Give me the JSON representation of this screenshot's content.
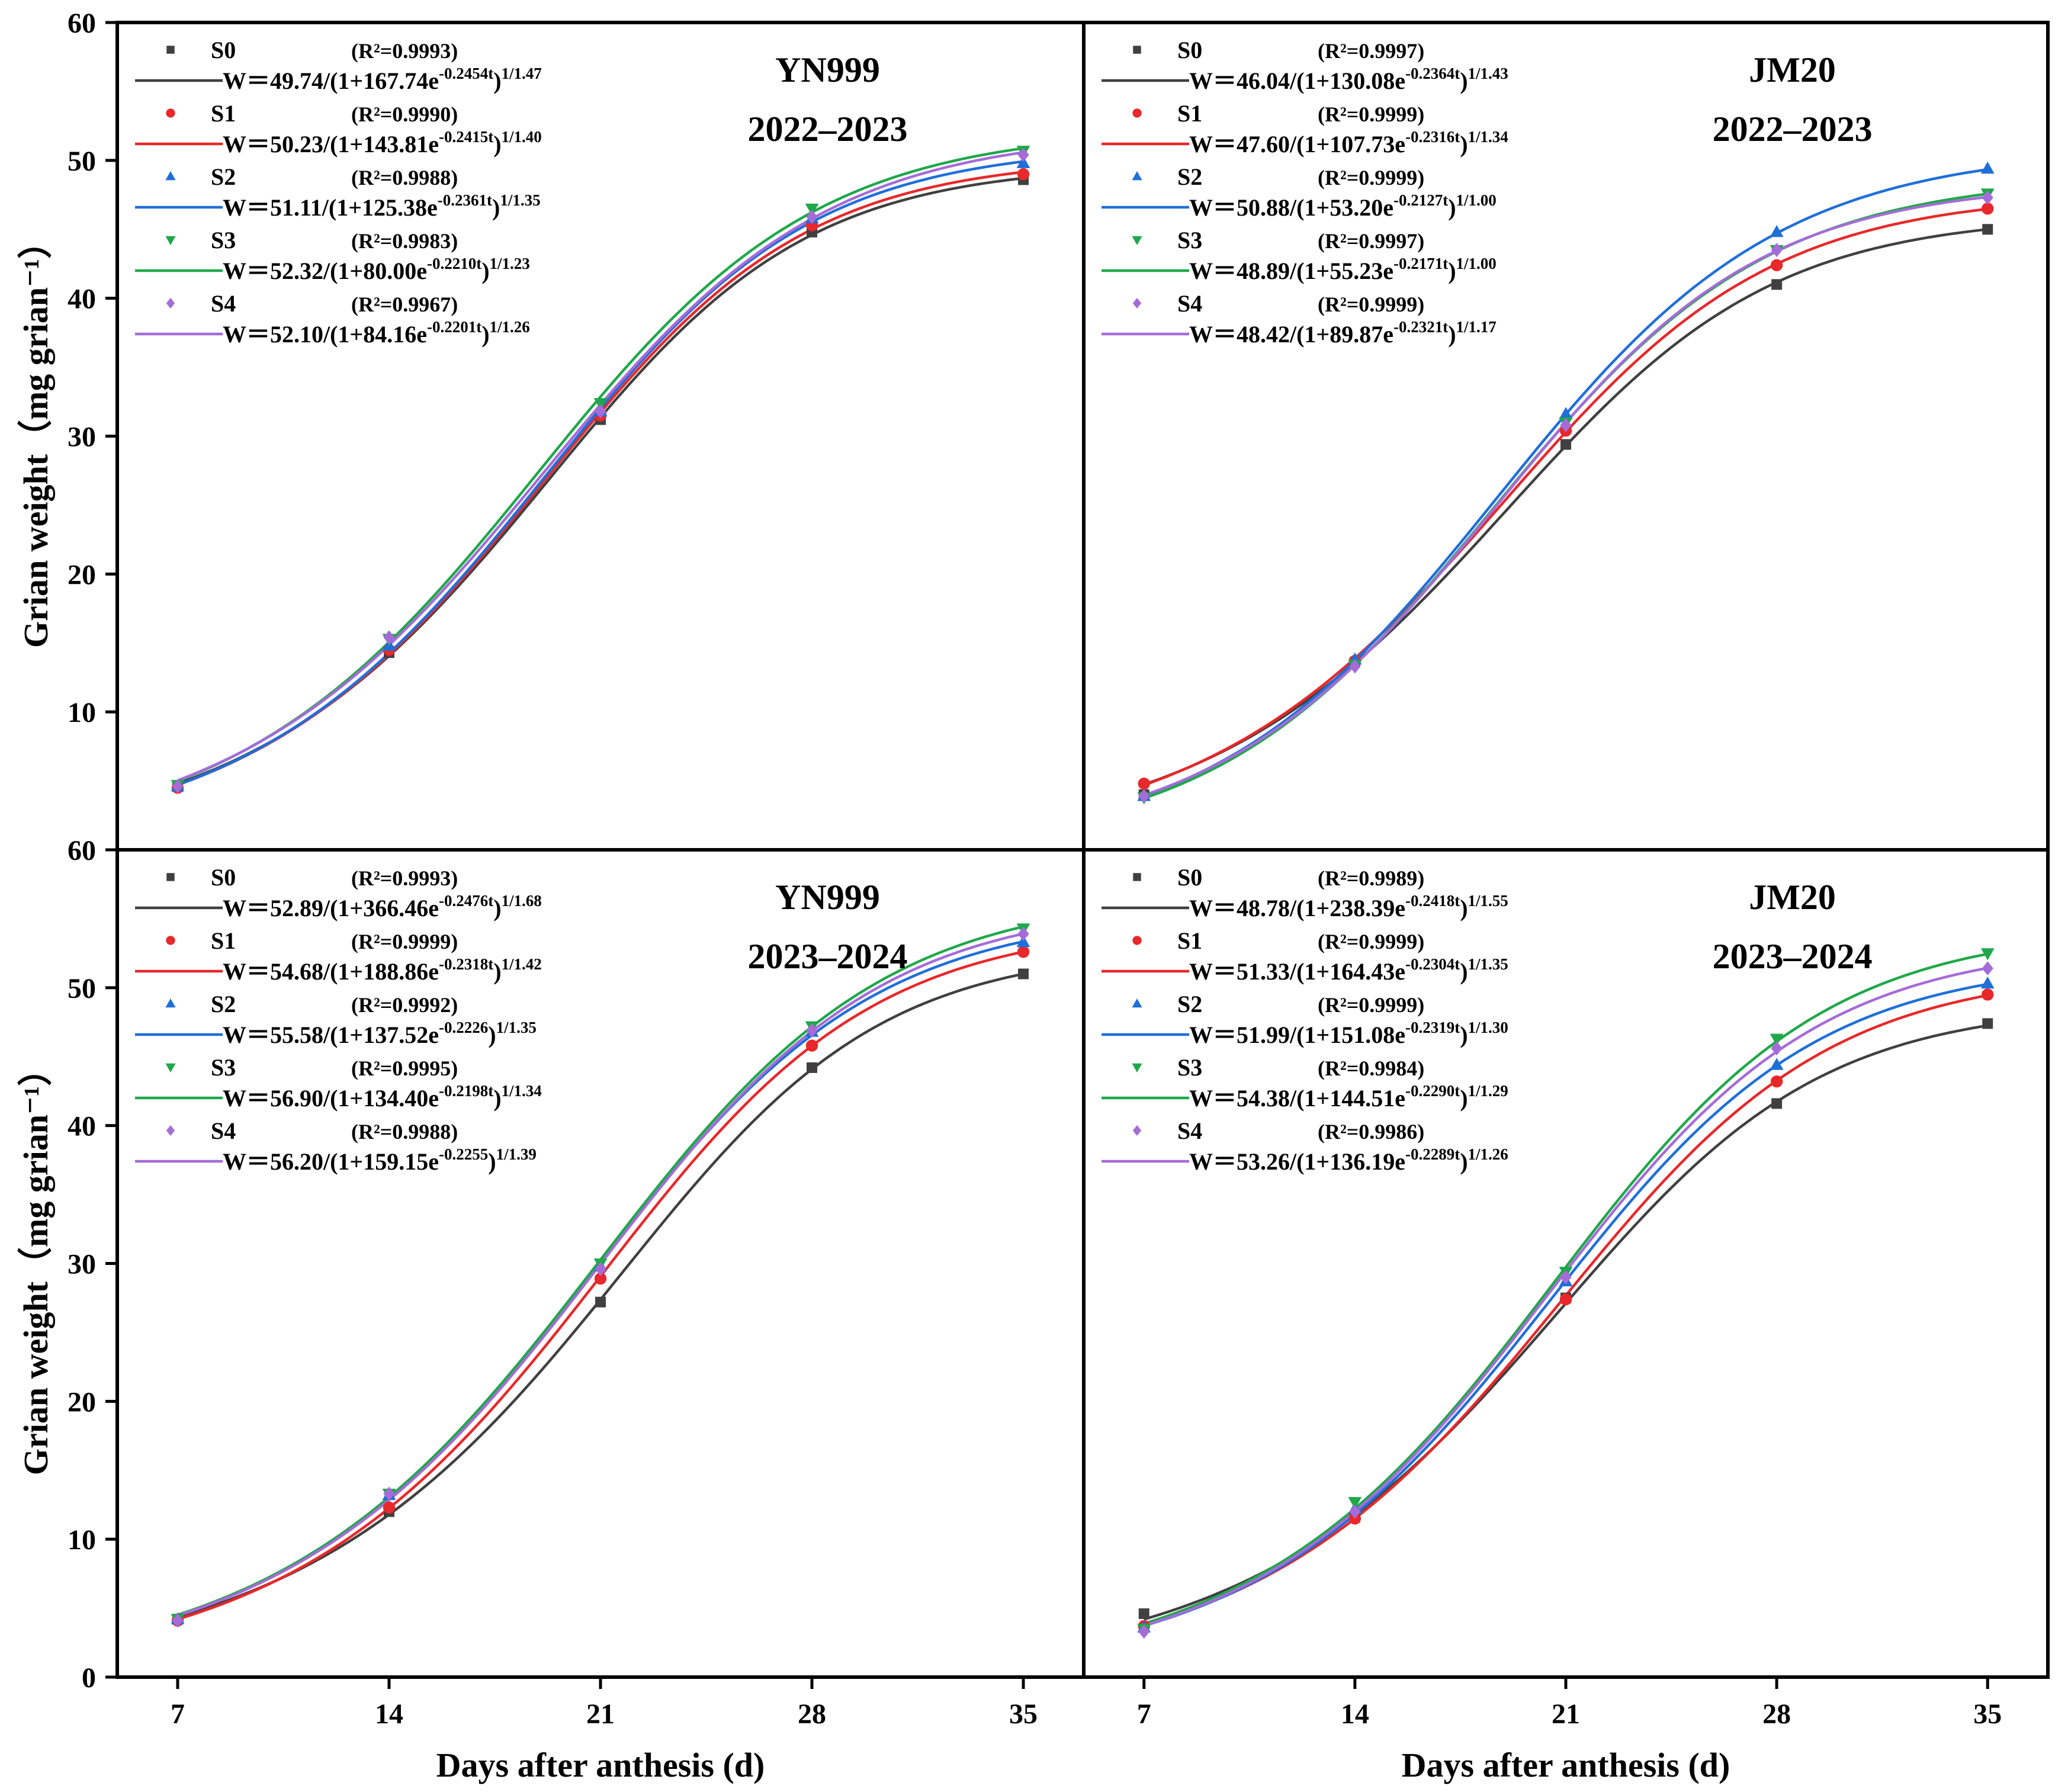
{
  "chart_data": {
    "type": "scatter",
    "layout": "2x2 shared axes",
    "xlabel": "Days after anthesis (d)",
    "ylabel": "Grian weight（mg grian⁻¹）",
    "xticks": [
      7,
      14,
      21,
      28,
      35
    ],
    "xlim": [
      5,
      37
    ],
    "yticks": [
      10,
      20,
      30,
      40,
      50,
      60
    ],
    "zero_label": "0",
    "ylim": [
      0,
      60
    ],
    "series_styles": [
      {
        "name": "S0",
        "color": "#404040",
        "marker": "square"
      },
      {
        "name": "S1",
        "color": "#e8282a",
        "marker": "circle"
      },
      {
        "name": "S2",
        "color": "#1f6fd9",
        "marker": "triangle-up"
      },
      {
        "name": "S3",
        "color": "#1fa84a",
        "marker": "triangle-down"
      },
      {
        "name": "S4",
        "color": "#a56cd8",
        "marker": "diamond"
      }
    ],
    "panels": [
      {
        "cultivar": "YN999",
        "season": "2022–2023",
        "x": [
          7,
          14,
          21,
          28,
          35
        ],
        "series": [
          {
            "name": "S0",
            "r2": "(R²=0.9993)",
            "eq_main": "W＝49.74/(1+167.74e",
            "eq_exp": "-0.2454t",
            "eq_close": ")",
            "eq_pow": "1/1.47",
            "A": 49.74,
            "B": 167.74,
            "k": 0.2454,
            "N": 1.47,
            "values": [
              4.6,
              14.3,
              31.2,
              44.8,
              48.6
            ]
          },
          {
            "name": "S1",
            "r2": "(R²=0.9990)",
            "eq_main": "W＝50.23/(1+143.81e",
            "eq_exp": "-0.2415t",
            "eq_close": ")",
            "eq_pow": "1/1.40",
            "A": 50.23,
            "B": 143.81,
            "k": 0.2415,
            "N": 1.4,
            "values": [
              4.5,
              14.5,
              31.5,
              45.3,
              49.0
            ]
          },
          {
            "name": "S2",
            "r2": "(R²=0.9988)",
            "eq_main": "W＝51.11/(1+125.38e",
            "eq_exp": "-0.2361t",
            "eq_close": ")",
            "eq_pow": "1/1.35",
            "A": 51.11,
            "B": 125.38,
            "k": 0.2361,
            "N": 1.35,
            "values": [
              4.6,
              14.8,
              31.8,
              45.8,
              49.8
            ]
          },
          {
            "name": "S3",
            "r2": "(R²=0.9983)",
            "eq_main": "W＝52.32/(1+80.00e",
            "eq_exp": "-0.2210t",
            "eq_close": ")",
            "eq_pow": "1/1.23",
            "A": 52.32,
            "B": 80.0,
            "k": 0.221,
            "N": 1.23,
            "values": [
              4.7,
              15.3,
              32.4,
              46.5,
              50.7
            ]
          },
          {
            "name": "S4",
            "r2": "(R²=0.9967)",
            "eq_main": "W＝52.10/(1+84.16e",
            "eq_exp": "-0.2201t",
            "eq_close": ")",
            "eq_pow": "1/1.26",
            "A": 52.1,
            "B": 84.16,
            "k": 0.2201,
            "N": 1.26,
            "values": [
              4.6,
              15.4,
              31.8,
              45.9,
              50.4
            ]
          }
        ]
      },
      {
        "cultivar": "JM20",
        "season": "2022–2023",
        "x": [
          7,
          14,
          21,
          28,
          35
        ],
        "series": [
          {
            "name": "S0",
            "r2": "(R²=0.9997)",
            "eq_main": "W＝46.04/(1+130.08e",
            "eq_exp": "-0.2364t",
            "eq_close": ")",
            "eq_pow": "1/1.43",
            "A": 46.04,
            "B": 130.08,
            "k": 0.2364,
            "N": 1.43,
            "values": [
              4.0,
              13.6,
              29.4,
              41.0,
              45.0
            ]
          },
          {
            "name": "S1",
            "r2": "(R²=0.9999)",
            "eq_main": "W＝47.60/(1+107.73e",
            "eq_exp": "-0.2316t",
            "eq_close": ")",
            "eq_pow": "1/1.34",
            "A": 47.6,
            "B": 107.73,
            "k": 0.2316,
            "N": 1.34,
            "values": [
              4.8,
              13.7,
              30.4,
              42.4,
              46.5
            ]
          },
          {
            "name": "S2",
            "r2": "(R²=0.9999)",
            "eq_main": "W＝50.88/(1+53.20e",
            "eq_exp": "-0.2127t",
            "eq_close": ")",
            "eq_pow": "1/1.00",
            "A": 50.88,
            "B": 53.2,
            "k": 0.2127,
            "N": 1.0,
            "values": [
              3.9,
              13.8,
              31.6,
              44.8,
              49.4
            ]
          },
          {
            "name": "S3",
            "r2": "(R²=0.9997)",
            "eq_main": "W＝48.89/(1+55.23e",
            "eq_exp": "-0.2171t",
            "eq_close": ")",
            "eq_pow": "1/1.00",
            "A": 48.89,
            "B": 55.23,
            "k": 0.2171,
            "N": 1.0,
            "values": [
              3.8,
              13.4,
              31.0,
              43.5,
              47.6
            ]
          },
          {
            "name": "S4",
            "r2": "(R²=0.9999)",
            "eq_main": "W＝48.42/(1+89.87e",
            "eq_exp": "-0.2321t",
            "eq_close": ")",
            "eq_pow": "1/1.17",
            "A": 48.42,
            "B": 89.87,
            "k": 0.2321,
            "N": 1.17,
            "values": [
              3.9,
              13.3,
              30.8,
              43.5,
              47.3
            ]
          }
        ]
      },
      {
        "cultivar": "YN999",
        "season": "2023–2024",
        "x": [
          7,
          14,
          21,
          28,
          35
        ],
        "series": [
          {
            "name": "S0",
            "r2": "(R²=0.9993)",
            "eq_main": "W＝52.89/(1+366.46e",
            "eq_exp": "-0.2476t",
            "eq_close": ")",
            "eq_pow": "1/1.68",
            "A": 52.89,
            "B": 366.46,
            "k": 0.2476,
            "N": 1.68,
            "values": [
              4.2,
              12.0,
              27.2,
              44.2,
              51.0
            ]
          },
          {
            "name": "S1",
            "r2": "(R²=0.9999)",
            "eq_main": "W＝54.68/(1+188.86e",
            "eq_exp": "-0.2318t",
            "eq_close": ")",
            "eq_pow": "1/1.42",
            "A": 54.68,
            "B": 188.86,
            "k": 0.2318,
            "N": 1.42,
            "values": [
              4.1,
              12.3,
              28.9,
              45.8,
              52.6
            ]
          },
          {
            "name": "S2",
            "r2": "(R²=0.9992)",
            "eq_main": "W＝55.58/(1+137.52e",
            "eq_exp": "-0.2226",
            "eq_close": ")",
            "eq_pow": "1/1.35",
            "A": 55.58,
            "B": 137.52,
            "k": 0.2226,
            "N": 1.35,
            "values": [
              4.2,
              13.2,
              29.8,
              46.8,
              53.3
            ]
          },
          {
            "name": "S3",
            "r2": "(R²=0.9995)",
            "eq_main": "W＝56.90/(1+134.40e",
            "eq_exp": "-0.2198t",
            "eq_close": ")",
            "eq_pow": "1/1.34",
            "A": 56.9,
            "B": 134.4,
            "k": 0.2198,
            "N": 1.34,
            "values": [
              4.2,
              13.3,
              30.0,
              47.2,
              54.3
            ]
          },
          {
            "name": "S4",
            "r2": "(R²=0.9988)",
            "eq_main": "W＝56.20/(1+159.15e",
            "eq_exp": "-0.2255",
            "eq_close": ")",
            "eq_pow": "1/1.39",
            "A": 56.2,
            "B": 159.15,
            "k": 0.2255,
            "N": 1.39,
            "values": [
              4.1,
              13.3,
              29.6,
              46.9,
              53.9
            ]
          }
        ]
      },
      {
        "cultivar": "JM20",
        "season": "2023–2024",
        "x": [
          7,
          14,
          21,
          28,
          35
        ],
        "series": [
          {
            "name": "S0",
            "r2": "(R²=0.9989)",
            "eq_main": "W＝48.78/(1+238.39e",
            "eq_exp": "-0.2418t",
            "eq_close": ")",
            "eq_pow": "1/1.55",
            "A": 48.78,
            "B": 238.39,
            "k": 0.2418,
            "N": 1.55,
            "values": [
              4.6,
              11.6,
              27.5,
              41.6,
              47.4
            ]
          },
          {
            "name": "S1",
            "r2": "(R²=0.9999)",
            "eq_main": "W＝51.33/(1+164.43e",
            "eq_exp": "-0.2304t",
            "eq_close": ")",
            "eq_pow": "1/1.35",
            "A": 51.33,
            "B": 164.43,
            "k": 0.2304,
            "N": 1.35,
            "values": [
              3.7,
              11.5,
              27.4,
              43.2,
              49.5
            ]
          },
          {
            "name": "S2",
            "r2": "(R²=0.9999)",
            "eq_main": "W＝51.99/(1+151.08e",
            "eq_exp": "-0.2319t",
            "eq_close": ")",
            "eq_pow": "1/1.30",
            "A": 51.99,
            "B": 151.08,
            "k": 0.2319,
            "N": 1.3,
            "values": [
              3.6,
              12.2,
              28.7,
              44.4,
              50.3
            ]
          },
          {
            "name": "S3",
            "r2": "(R²=0.9984)",
            "eq_main": "W＝54.38/(1+144.51e",
            "eq_exp": "-0.2290t",
            "eq_close": ")",
            "eq_pow": "1/1.29",
            "A": 54.38,
            "B": 144.51,
            "k": 0.229,
            "N": 1.29,
            "values": [
              3.5,
              12.7,
              29.4,
              46.3,
              52.5
            ]
          },
          {
            "name": "S4",
            "r2": "(R²=0.9986)",
            "eq_main": "W＝53.26/(1+136.19e",
            "eq_exp": "-0.2289t",
            "eq_close": ")",
            "eq_pow": "1/1.26",
            "A": 53.26,
            "B": 136.19,
            "k": 0.2289,
            "N": 1.26,
            "values": [
              3.3,
              12.0,
              29.0,
              45.6,
              51.4
            ]
          }
        ]
      }
    ]
  }
}
